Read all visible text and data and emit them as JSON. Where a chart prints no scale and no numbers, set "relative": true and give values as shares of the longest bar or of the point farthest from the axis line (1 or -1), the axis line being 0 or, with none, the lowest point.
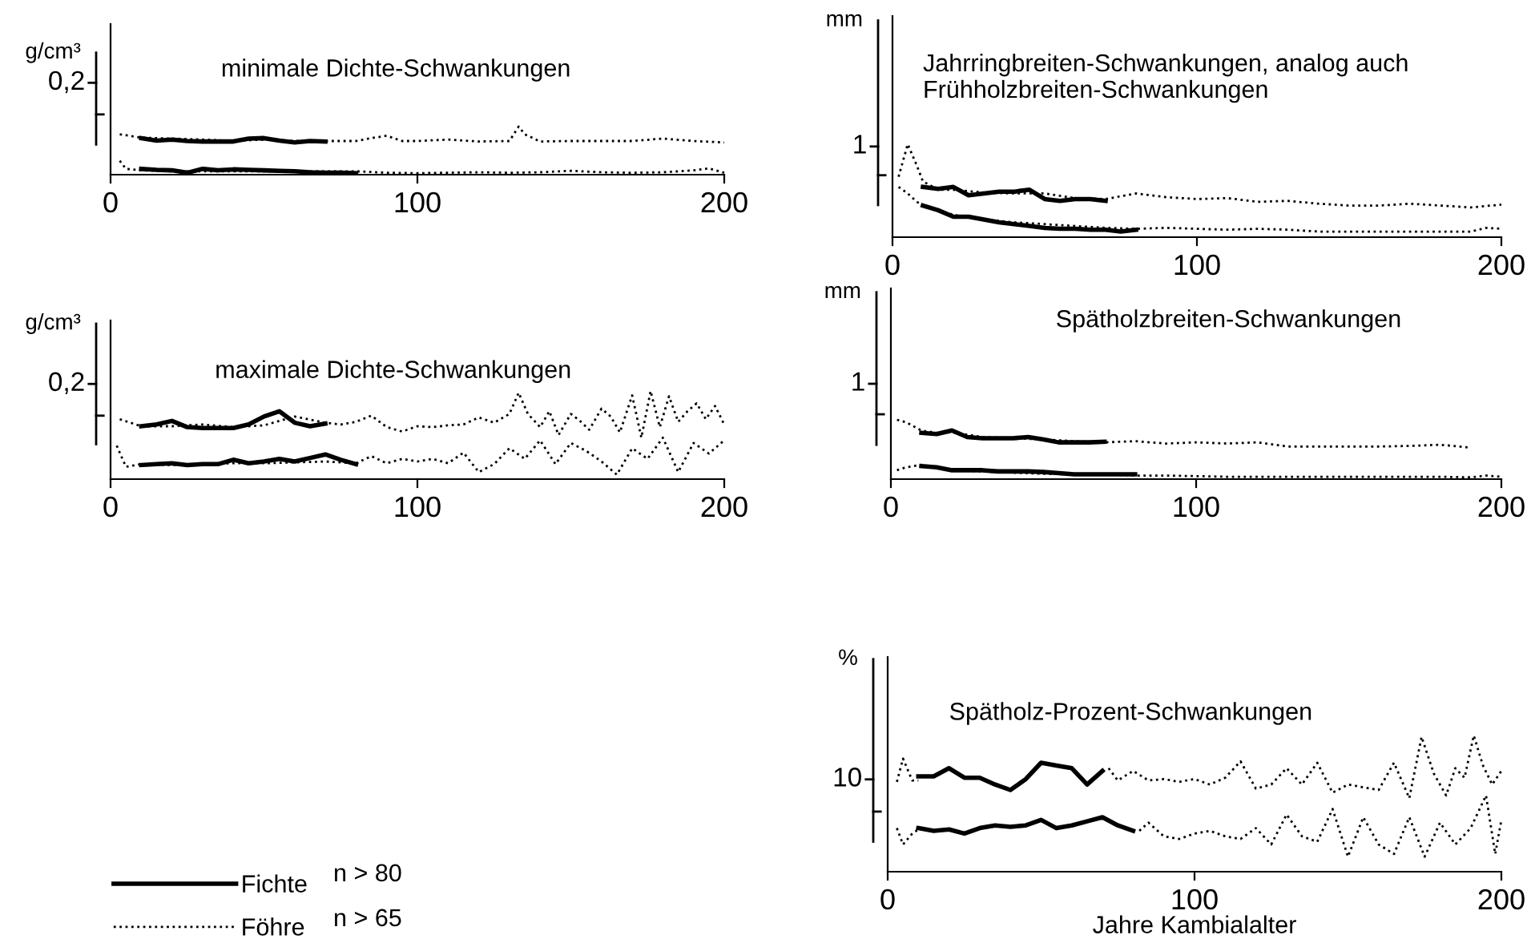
{
  "chart_data": [
    {
      "type": "line",
      "title": "minimale Dichte-Schwankungen",
      "ylabel": "g/cm³",
      "relative": true,
      "xlim": [
        0,
        200
      ],
      "xticks": [
        0,
        100,
        200
      ],
      "grid": false,
      "annotations": [
        "0,2"
      ],
      "series": [
        {
          "color": "#000000",
          "line_style": "dotted",
          "x": [
            3,
            10,
            20,
            30,
            40,
            50,
            60,
            70,
            75,
            80,
            85,
            90,
            95,
            100,
            110,
            120,
            130,
            133,
            135,
            140,
            150,
            160,
            170,
            180,
            190,
            200
          ],
          "values": [
            0.84,
            0.77,
            0.75,
            0.73,
            0.7,
            0.73,
            0.7,
            0.7,
            0.7,
            0.7,
            0.76,
            0.81,
            0.7,
            0.7,
            0.73,
            0.69,
            0.7,
            1.0,
            0.84,
            0.69,
            0.7,
            0.7,
            0.7,
            0.75,
            0.7,
            0.67
          ]
        },
        {
          "color": "#000000",
          "line_style": "solid",
          "x": [
            10,
            15,
            20,
            25,
            30,
            35,
            40,
            45,
            50,
            55,
            60,
            65,
            70
          ],
          "values": [
            0.76,
            0.71,
            0.73,
            0.7,
            0.69,
            0.69,
            0.69,
            0.75,
            0.76,
            0.71,
            0.67,
            0.7,
            0.69
          ]
        },
        {
          "color": "#000000",
          "line_style": "dotted",
          "x": [
            3,
            5,
            10,
            20,
            30,
            40,
            50,
            60,
            70,
            80,
            90,
            100,
            110,
            120,
            130,
            140,
            150,
            160,
            170,
            180,
            190,
            195,
            200
          ],
          "values": [
            0.29,
            0.12,
            0.09,
            0.07,
            0.07,
            0.07,
            0.07,
            0.07,
            0.07,
            0.07,
            0.04,
            0.03,
            0.04,
            0.05,
            0.04,
            0.05,
            0.08,
            0.05,
            0.04,
            0.05,
            0.09,
            0.13,
            0.04
          ]
        },
        {
          "color": "#000000",
          "line_style": "solid",
          "x": [
            10,
            15,
            20,
            25,
            30,
            35,
            40,
            45,
            50,
            55,
            60,
            65,
            70,
            75,
            80
          ],
          "values": [
            0.12,
            0.1,
            0.09,
            0.04,
            0.12,
            0.09,
            0.11,
            0.1,
            0.09,
            0.08,
            0.07,
            0.05,
            0.04,
            0.04,
            0.03
          ]
        }
      ]
    },
    {
      "type": "line",
      "title": "Jahrringbreiten-Schwankungen, analog auch\nFrühholzbreiten-Schwankungen",
      "ylabel": "mm",
      "relative": true,
      "xlim": [
        0,
        200
      ],
      "xticks": [
        0,
        100,
        200
      ],
      "grid": false,
      "annotations": [
        "1"
      ],
      "series": [
        {
          "color": "#000000",
          "line_style": "dotted",
          "x": [
            2,
            5,
            8,
            10,
            15,
            20,
            30,
            40,
            50,
            60,
            70,
            80,
            90,
            100,
            110,
            120,
            130,
            140,
            150,
            160,
            170,
            180,
            190,
            200
          ],
          "values": [
            0.65,
            1.0,
            0.77,
            0.6,
            0.51,
            0.51,
            0.48,
            0.47,
            0.47,
            0.42,
            0.41,
            0.47,
            0.43,
            0.41,
            0.42,
            0.38,
            0.39,
            0.36,
            0.34,
            0.34,
            0.36,
            0.34,
            0.32,
            0.35
          ]
        },
        {
          "color": "#000000",
          "line_style": "solid",
          "x": [
            10,
            15,
            20,
            25,
            30,
            35,
            40,
            45,
            50,
            55,
            60,
            65,
            70
          ],
          "values": [
            0.54,
            0.52,
            0.54,
            0.45,
            0.47,
            0.49,
            0.49,
            0.51,
            0.41,
            0.39,
            0.41,
            0.41,
            0.39
          ]
        },
        {
          "color": "#000000",
          "line_style": "dotted",
          "x": [
            2,
            5,
            8,
            10,
            20,
            30,
            40,
            50,
            60,
            70,
            80,
            90,
            100,
            110,
            120,
            130,
            140,
            150,
            160,
            170,
            180,
            190,
            195,
            200
          ],
          "values": [
            0.54,
            0.47,
            0.38,
            0.34,
            0.24,
            0.19,
            0.16,
            0.14,
            0.12,
            0.1,
            0.09,
            0.1,
            0.09,
            0.08,
            0.09,
            0.08,
            0.06,
            0.06,
            0.06,
            0.06,
            0.06,
            0.06,
            0.1,
            0.09
          ]
        },
        {
          "color": "#000000",
          "line_style": "solid",
          "x": [
            10,
            15,
            20,
            25,
            30,
            35,
            40,
            45,
            50,
            55,
            60,
            65,
            70,
            75,
            80
          ],
          "values": [
            0.34,
            0.29,
            0.22,
            0.22,
            0.19,
            0.16,
            0.14,
            0.12,
            0.1,
            0.09,
            0.09,
            0.08,
            0.08,
            0.06,
            0.08
          ]
        }
      ]
    },
    {
      "type": "line",
      "title": "maximale Dichte-Schwankungen",
      "ylabel": "g/cm³",
      "relative": true,
      "xlim": [
        0,
        200
      ],
      "xticks": [
        0,
        100,
        200
      ],
      "grid": false,
      "annotations": [
        "0,2"
      ],
      "series": [
        {
          "color": "#000000",
          "line_style": "dotted",
          "x": [
            3,
            10,
            20,
            30,
            40,
            50,
            60,
            70,
            75,
            80,
            85,
            90,
            95,
            100,
            105,
            110,
            115,
            120,
            125,
            130,
            133,
            136,
            140,
            143,
            146,
            150,
            153,
            156,
            160,
            163,
            166,
            170,
            173,
            176,
            179,
            182,
            185,
            188,
            191,
            194,
            197,
            200
          ],
          "values": [
            0.68,
            0.6,
            0.6,
            0.62,
            0.59,
            0.61,
            0.71,
            0.64,
            0.62,
            0.65,
            0.72,
            0.59,
            0.54,
            0.6,
            0.59,
            0.61,
            0.62,
            0.7,
            0.64,
            0.74,
            0.98,
            0.74,
            0.59,
            0.77,
            0.5,
            0.74,
            0.66,
            0.56,
            0.8,
            0.71,
            0.53,
            0.95,
            0.47,
            1.0,
            0.59,
            0.94,
            0.65,
            0.77,
            0.86,
            0.68,
            0.83,
            0.62
          ]
        },
        {
          "color": "#000000",
          "line_style": "solid",
          "x": [
            10,
            15,
            20,
            25,
            30,
            35,
            40,
            45,
            50,
            55,
            60,
            65,
            70
          ],
          "values": [
            0.6,
            0.62,
            0.66,
            0.59,
            0.58,
            0.58,
            0.58,
            0.62,
            0.71,
            0.77,
            0.64,
            0.6,
            0.63
          ]
        },
        {
          "color": "#000000",
          "line_style": "dotted",
          "x": [
            2,
            5,
            10,
            20,
            30,
            40,
            50,
            60,
            70,
            80,
            85,
            90,
            95,
            100,
            105,
            110,
            115,
            120,
            125,
            130,
            135,
            140,
            145,
            150,
            155,
            160,
            165,
            170,
            175,
            180,
            185,
            190,
            195,
            200
          ],
          "values": [
            0.38,
            0.14,
            0.17,
            0.16,
            0.17,
            0.18,
            0.18,
            0.19,
            0.2,
            0.18,
            0.26,
            0.18,
            0.23,
            0.2,
            0.23,
            0.18,
            0.3,
            0.08,
            0.17,
            0.35,
            0.23,
            0.44,
            0.17,
            0.41,
            0.32,
            0.2,
            0.05,
            0.35,
            0.23,
            0.47,
            0.08,
            0.41,
            0.29,
            0.44
          ]
        },
        {
          "color": "#000000",
          "line_style": "solid",
          "x": [
            10,
            15,
            20,
            25,
            30,
            35,
            40,
            45,
            50,
            55,
            60,
            65,
            70,
            75,
            80
          ],
          "values": [
            0.16,
            0.17,
            0.18,
            0.16,
            0.17,
            0.17,
            0.22,
            0.18,
            0.2,
            0.23,
            0.2,
            0.24,
            0.28,
            0.22,
            0.17
          ]
        }
      ]
    },
    {
      "type": "line",
      "title": "Spätholzbreiten-Schwankungen",
      "ylabel": "mm",
      "relative": true,
      "xlim": [
        0,
        200
      ],
      "xticks": [
        0,
        100,
        200
      ],
      "grid": false,
      "annotations": [
        "1"
      ],
      "series": [
        {
          "color": "#000000",
          "line_style": "dotted",
          "x": [
            2,
            5,
            10,
            15,
            20,
            30,
            40,
            50,
            60,
            70,
            80,
            90,
            100,
            110,
            120,
            130,
            140,
            150,
            160,
            170,
            180,
            190
          ],
          "values": [
            1.0,
            0.96,
            0.82,
            0.78,
            0.79,
            0.71,
            0.69,
            0.67,
            0.64,
            0.62,
            0.64,
            0.6,
            0.62,
            0.6,
            0.62,
            0.55,
            0.55,
            0.55,
            0.55,
            0.56,
            0.58,
            0.53
          ]
        },
        {
          "color": "#000000",
          "line_style": "solid",
          "x": [
            10,
            15,
            20,
            25,
            30,
            35,
            40,
            45,
            50,
            55,
            60,
            65,
            70
          ],
          "values": [
            0.78,
            0.76,
            0.82,
            0.71,
            0.69,
            0.69,
            0.69,
            0.71,
            0.67,
            0.62,
            0.62,
            0.62,
            0.63
          ]
        },
        {
          "color": "#000000",
          "line_style": "dotted",
          "x": [
            2,
            5,
            10,
            20,
            30,
            40,
            50,
            60,
            70,
            80,
            90,
            100,
            110,
            120,
            130,
            140,
            150,
            160,
            170,
            180,
            190,
            195,
            200
          ],
          "values": [
            0.15,
            0.2,
            0.24,
            0.15,
            0.13,
            0.11,
            0.09,
            0.08,
            0.08,
            0.06,
            0.06,
            0.05,
            0.04,
            0.04,
            0.04,
            0.04,
            0.04,
            0.04,
            0.04,
            0.04,
            0.03,
            0.06,
            0.04
          ]
        },
        {
          "color": "#000000",
          "line_style": "solid",
          "x": [
            10,
            15,
            20,
            25,
            30,
            35,
            40,
            45,
            50,
            55,
            60,
            65,
            70,
            75,
            80
          ],
          "values": [
            0.22,
            0.2,
            0.15,
            0.15,
            0.15,
            0.13,
            0.13,
            0.13,
            0.12,
            0.1,
            0.08,
            0.08,
            0.08,
            0.08,
            0.08
          ]
        }
      ]
    },
    {
      "type": "line",
      "title": "Spätholz-Prozent-Schwankungen",
      "ylabel": "%",
      "xlabel": "Jahre Kambialalter",
      "relative": true,
      "xlim": [
        0,
        200
      ],
      "xticks": [
        0,
        100,
        200
      ],
      "grid": false,
      "legend": "bottom left",
      "annotations": [
        "10",
        "n > 80",
        "n > 65"
      ],
      "series": [
        {
          "name": "Fichte",
          "color": "#000000",
          "line_style": "solid",
          "x": [
            10,
            15,
            20,
            25,
            30,
            35,
            40,
            45,
            50,
            55,
            60,
            65,
            70
          ],
          "values": [
            0.7,
            0.7,
            0.76,
            0.69,
            0.69,
            0.64,
            0.6,
            0.68,
            0.8,
            0.78,
            0.76,
            0.64,
            0.74
          ]
        },
        {
          "name": "Föhre",
          "color": "#000000",
          "line_style": "dotted",
          "x": [
            3,
            5,
            8,
            10,
            40,
            72,
            75,
            80,
            85,
            90,
            95,
            100,
            105,
            110,
            115,
            120,
            125,
            130,
            135,
            140,
            145,
            150,
            155,
            160,
            165,
            170,
            174,
            178,
            182,
            185,
            188,
            191,
            194,
            197,
            200
          ],
          "values": [
            0.66,
            0.83,
            0.67,
            0.67,
            null,
            0.76,
            0.67,
            0.74,
            0.67,
            0.68,
            0.66,
            0.68,
            0.64,
            0.69,
            0.81,
            0.61,
            0.64,
            0.76,
            0.64,
            0.8,
            0.58,
            0.64,
            0.62,
            0.6,
            0.8,
            0.54,
            0.99,
            0.72,
            0.56,
            0.76,
            0.69,
            1.0,
            0.78,
            0.64,
            0.74
          ]
        },
        {
          "color": "#000000",
          "line_style": "dotted",
          "x": [
            3,
            5,
            8,
            10,
            40,
            82,
            85,
            90,
            95,
            100,
            105,
            110,
            115,
            120,
            125,
            130,
            135,
            140,
            145,
            150,
            155,
            160,
            165,
            170,
            175,
            180,
            185,
            190,
            195,
            198,
            200
          ],
          "values": [
            0.32,
            0.2,
            0.28,
            0.31,
            null,
            0.3,
            0.36,
            0.26,
            0.24,
            0.28,
            0.3,
            0.26,
            0.24,
            0.32,
            0.2,
            0.42,
            0.26,
            0.22,
            0.46,
            0.11,
            0.4,
            0.2,
            0.13,
            0.4,
            0.11,
            0.36,
            0.2,
            0.32,
            0.56,
            0.13,
            0.38
          ]
        },
        {
          "color": "#000000",
          "line_style": "solid",
          "x": [
            10,
            15,
            20,
            25,
            30,
            35,
            40,
            45,
            50,
            55,
            60,
            65,
            70,
            75,
            80
          ],
          "values": [
            0.32,
            0.3,
            0.31,
            0.28,
            0.32,
            0.34,
            0.33,
            0.34,
            0.38,
            0.32,
            0.34,
            0.37,
            0.4,
            0.34,
            0.3
          ]
        }
      ]
    }
  ]
}
